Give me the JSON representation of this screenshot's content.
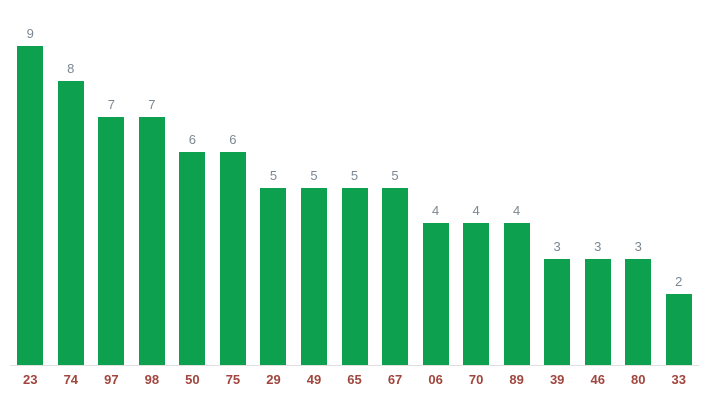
{
  "chart_data": {
    "type": "bar",
    "categories": [
      "23",
      "74",
      "97",
      "98",
      "50",
      "75",
      "29",
      "49",
      "65",
      "67",
      "06",
      "70",
      "89",
      "39",
      "46",
      "80",
      "33"
    ],
    "values": [
      9,
      8,
      7,
      7,
      6,
      6,
      5,
      5,
      5,
      5,
      4,
      4,
      4,
      3,
      3,
      3,
      2
    ],
    "title": "",
    "xlabel": "",
    "ylabel": "",
    "ylim": [
      0,
      10
    ],
    "grid": false,
    "legend": "none",
    "value_labels_shown": true,
    "colors": {
      "background": "#ffffff",
      "bar": "#0ca04f",
      "value_label": "#7b8792",
      "category_label": "#a0463e",
      "axis_line": "#e0e0e0"
    }
  }
}
